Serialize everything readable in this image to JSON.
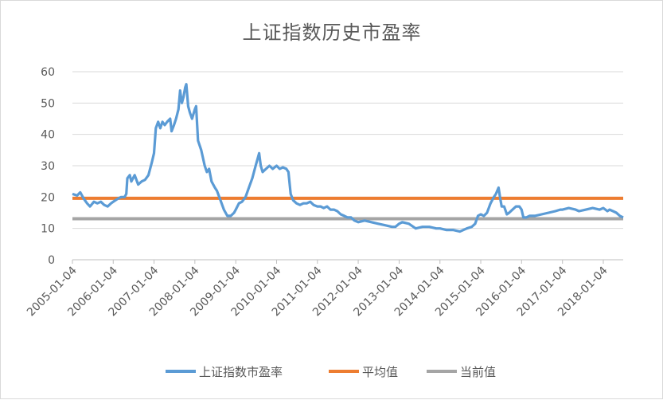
{
  "chart_data": {
    "type": "line",
    "title": "上证指数历史市盈率",
    "ylim": [
      0,
      60
    ],
    "yticks": [
      0,
      10,
      20,
      30,
      40,
      50,
      60
    ],
    "xlim": [
      "2005-01-04",
      "2018-07-01"
    ],
    "xticks": [
      "2005-01-04",
      "2006-01-04",
      "2007-01-04",
      "2008-01-04",
      "2009-01-04",
      "2010-01-04",
      "2011-01-04",
      "2012-01-04",
      "2013-01-04",
      "2014-01-04",
      "2015-01-04",
      "2016-01-04",
      "2017-01-04",
      "2018-01-04"
    ],
    "grid": true,
    "legend_position": "bottom",
    "series": [
      {
        "name": "上证指数市盈率",
        "color": "#5b9bd5",
        "points": [
          [
            "2005-01-04",
            21
          ],
          [
            "2005-02-15",
            20.5
          ],
          [
            "2005-03-15",
            21.5
          ],
          [
            "2005-04-15",
            19.5
          ],
          [
            "2005-05-15",
            18
          ],
          [
            "2005-06-10",
            17
          ],
          [
            "2005-07-15",
            18.5
          ],
          [
            "2005-08-15",
            18
          ],
          [
            "2005-09-15",
            18.5
          ],
          [
            "2005-10-15",
            17.5
          ],
          [
            "2005-11-15",
            17
          ],
          [
            "2005-12-15",
            18
          ],
          [
            "2006-01-04",
            18.5
          ],
          [
            "2006-02-15",
            19.5
          ],
          [
            "2006-03-15",
            20
          ],
          [
            "2006-04-15",
            20
          ],
          [
            "2006-05-01",
            21
          ],
          [
            "2006-05-10",
            26
          ],
          [
            "2006-06-01",
            27
          ],
          [
            "2006-06-15",
            25
          ],
          [
            "2006-07-15",
            27
          ],
          [
            "2006-08-15",
            24
          ],
          [
            "2006-09-15",
            25
          ],
          [
            "2006-10-15",
            25.5
          ],
          [
            "2006-11-15",
            27
          ],
          [
            "2006-12-15",
            31
          ],
          [
            "2007-01-04",
            34
          ],
          [
            "2007-01-20",
            42
          ],
          [
            "2007-02-10",
            44
          ],
          [
            "2007-03-01",
            42
          ],
          [
            "2007-03-20",
            44
          ],
          [
            "2007-04-10",
            43
          ],
          [
            "2007-05-01",
            44
          ],
          [
            "2007-05-28",
            45
          ],
          [
            "2007-06-10",
            41
          ],
          [
            "2007-07-01",
            43
          ],
          [
            "2007-07-20",
            45
          ],
          [
            "2007-08-10",
            48
          ],
          [
            "2007-08-25",
            54
          ],
          [
            "2007-09-10",
            50
          ],
          [
            "2007-09-25",
            52
          ],
          [
            "2007-10-10",
            55
          ],
          [
            "2007-10-20",
            56
          ],
          [
            "2007-11-05",
            49
          ],
          [
            "2007-11-20",
            47
          ],
          [
            "2007-12-10",
            45
          ],
          [
            "2008-01-04",
            48
          ],
          [
            "2008-01-15",
            49
          ],
          [
            "2008-02-01",
            38
          ],
          [
            "2008-03-01",
            35
          ],
          [
            "2008-04-01",
            30
          ],
          [
            "2008-04-20",
            28
          ],
          [
            "2008-05-10",
            29
          ],
          [
            "2008-06-01",
            25
          ],
          [
            "2008-07-01",
            23
          ],
          [
            "2008-07-20",
            22
          ],
          [
            "2008-08-20",
            19
          ],
          [
            "2008-09-20",
            16
          ],
          [
            "2008-10-20",
            14
          ],
          [
            "2008-11-20",
            14
          ],
          [
            "2008-12-20",
            15
          ],
          [
            "2009-01-04",
            16
          ],
          [
            "2009-02-01",
            18
          ],
          [
            "2009-03-01",
            18.5
          ],
          [
            "2009-04-01",
            20
          ],
          [
            "2009-05-01",
            23
          ],
          [
            "2009-06-01",
            26
          ],
          [
            "2009-07-01",
            30
          ],
          [
            "2009-08-01",
            34
          ],
          [
            "2009-08-15",
            30
          ],
          [
            "2009-09-01",
            28
          ],
          [
            "2009-10-01",
            29
          ],
          [
            "2009-11-01",
            30
          ],
          [
            "2009-12-01",
            29
          ],
          [
            "2010-01-04",
            30
          ],
          [
            "2010-02-01",
            29
          ],
          [
            "2010-03-01",
            29.5
          ],
          [
            "2010-04-01",
            29
          ],
          [
            "2010-04-20",
            28
          ],
          [
            "2010-05-10",
            21
          ],
          [
            "2010-06-01",
            19
          ],
          [
            "2010-07-01",
            18
          ],
          [
            "2010-08-01",
            17.5
          ],
          [
            "2010-09-01",
            18
          ],
          [
            "2010-10-01",
            18
          ],
          [
            "2010-11-01",
            18.5
          ],
          [
            "2010-12-01",
            17.5
          ],
          [
            "2011-01-04",
            17
          ],
          [
            "2011-02-01",
            17
          ],
          [
            "2011-03-01",
            16.5
          ],
          [
            "2011-04-01",
            17
          ],
          [
            "2011-05-01",
            16
          ],
          [
            "2011-06-01",
            16
          ],
          [
            "2011-07-01",
            15.5
          ],
          [
            "2011-08-01",
            14.5
          ],
          [
            "2011-09-01",
            14
          ],
          [
            "2011-10-01",
            13.5
          ],
          [
            "2011-11-01",
            13.5
          ],
          [
            "2011-12-01",
            12.5
          ],
          [
            "2012-01-04",
            12
          ],
          [
            "2012-03-01",
            12.5
          ],
          [
            "2012-05-01",
            12
          ],
          [
            "2012-07-01",
            11.5
          ],
          [
            "2012-09-01",
            11
          ],
          [
            "2012-11-01",
            10.5
          ],
          [
            "2012-12-01",
            10.5
          ],
          [
            "2013-01-04",
            11.5
          ],
          [
            "2013-02-01",
            12
          ],
          [
            "2013-04-01",
            11.5
          ],
          [
            "2013-06-01",
            10
          ],
          [
            "2013-08-01",
            10.5
          ],
          [
            "2013-10-01",
            10.5
          ],
          [
            "2013-12-01",
            10
          ],
          [
            "2014-01-04",
            10
          ],
          [
            "2014-03-01",
            9.5
          ],
          [
            "2014-05-01",
            9.5
          ],
          [
            "2014-07-01",
            9
          ],
          [
            "2014-09-01",
            10
          ],
          [
            "2014-10-15",
            10.5
          ],
          [
            "2014-11-15",
            11.5
          ],
          [
            "2014-12-10",
            14
          ],
          [
            "2015-01-04",
            14.5
          ],
          [
            "2015-02-01",
            14
          ],
          [
            "2015-03-01",
            15
          ],
          [
            "2015-04-01",
            18
          ],
          [
            "2015-05-01",
            20
          ],
          [
            "2015-05-20",
            21
          ],
          [
            "2015-06-12",
            23
          ],
          [
            "2015-06-25",
            20
          ],
          [
            "2015-07-10",
            17
          ],
          [
            "2015-08-01",
            17
          ],
          [
            "2015-08-25",
            14.5
          ],
          [
            "2015-09-15",
            15
          ],
          [
            "2015-10-15",
            16
          ],
          [
            "2015-11-15",
            17
          ],
          [
            "2015-12-15",
            17
          ],
          [
            "2016-01-04",
            16
          ],
          [
            "2016-01-20",
            13.5
          ],
          [
            "2016-02-15",
            13.5
          ],
          [
            "2016-03-15",
            14
          ],
          [
            "2016-05-01",
            14
          ],
          [
            "2016-07-01",
            14.5
          ],
          [
            "2016-09-01",
            15
          ],
          [
            "2016-11-01",
            15.5
          ],
          [
            "2016-12-15",
            16
          ],
          [
            "2017-01-04",
            16
          ],
          [
            "2017-03-01",
            16.5
          ],
          [
            "2017-05-01",
            16
          ],
          [
            "2017-06-01",
            15.5
          ],
          [
            "2017-08-01",
            16
          ],
          [
            "2017-10-01",
            16.5
          ],
          [
            "2017-12-01",
            16
          ],
          [
            "2018-01-04",
            16.5
          ],
          [
            "2018-02-10",
            15.5
          ],
          [
            "2018-03-01",
            16
          ],
          [
            "2018-04-01",
            15.5
          ],
          [
            "2018-05-01",
            15
          ],
          [
            "2018-06-01",
            14
          ],
          [
            "2018-07-01",
            13.5
          ]
        ]
      },
      {
        "name": "平均值",
        "color": "#ed7d31",
        "points": [
          [
            "2005-01-04",
            19.6
          ],
          [
            "2018-07-01",
            19.6
          ]
        ]
      },
      {
        "name": "当前值",
        "color": "#a5a5a5",
        "points": [
          [
            "2005-01-04",
            13.1
          ],
          [
            "2018-07-01",
            13.1
          ]
        ]
      }
    ]
  }
}
